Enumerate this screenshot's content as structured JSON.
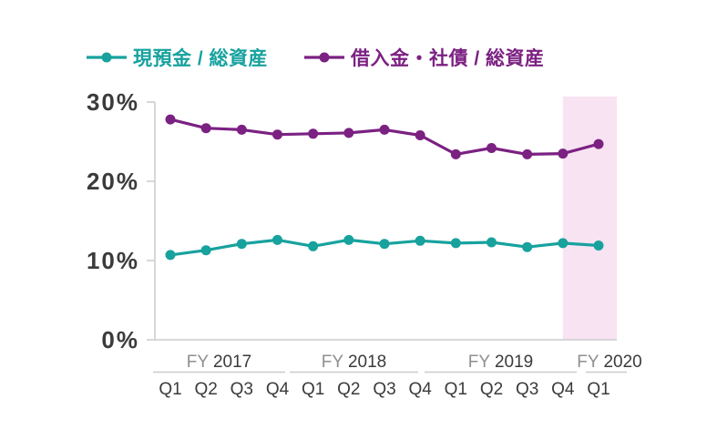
{
  "legend": [
    {
      "label": "現預金 / 総資産",
      "color": "#17A29E"
    },
    {
      "label": "借入金・社債 / 総資産",
      "color": "#7B2182"
    }
  ],
  "highlight": {
    "color": "#F8E3F2",
    "from_category": "FY2019 Q4",
    "to_category": "FY2020 Q1"
  },
  "chart_data": {
    "type": "line",
    "title": "",
    "xlabel": "",
    "ylabel": "",
    "ylim": [
      0,
      30
    ],
    "grid": false,
    "legend_position": "top",
    "y_ticks": [
      {
        "value": 30,
        "label": "30%"
      },
      {
        "value": 20,
        "label": "20%"
      },
      {
        "value": 10,
        "label": "10%"
      },
      {
        "value": 0,
        "label": "0%"
      }
    ],
    "x_axis_groups": [
      {
        "prefix": "FY",
        "year": "2017",
        "quarters": [
          "Q1",
          "Q2",
          "Q3",
          "Q4"
        ]
      },
      {
        "prefix": "FY",
        "year": "2018",
        "quarters": [
          "Q1",
          "Q2",
          "Q3",
          "Q4"
        ]
      },
      {
        "prefix": "FY",
        "year": "2019",
        "quarters": [
          "Q1",
          "Q2",
          "Q3",
          "Q4"
        ]
      },
      {
        "prefix": "FY",
        "year": "2020",
        "quarters": [
          "Q1"
        ]
      }
    ],
    "x_categories": [
      "FY2017 Q1",
      "FY2017 Q2",
      "FY2017 Q3",
      "FY2017 Q4",
      "FY2018 Q1",
      "FY2018 Q2",
      "FY2018 Q3",
      "FY2018 Q4",
      "FY2019 Q1",
      "FY2019 Q2",
      "FY2019 Q3",
      "FY2019 Q4",
      "FY2020 Q1"
    ],
    "series": [
      {
        "name": "現預金 / 総資産",
        "color": "#17A29E",
        "values": [
          10.7,
          11.3,
          12.1,
          12.6,
          11.8,
          12.6,
          12.1,
          12.5,
          12.2,
          12.3,
          11.7,
          12.2,
          11.9
        ]
      },
      {
        "name": "借入金・社債 / 総資産",
        "color": "#7B2182",
        "values": [
          27.8,
          26.7,
          26.5,
          25.9,
          26.0,
          26.1,
          26.5,
          25.8,
          23.4,
          24.2,
          23.4,
          23.5,
          24.7
        ]
      }
    ]
  }
}
